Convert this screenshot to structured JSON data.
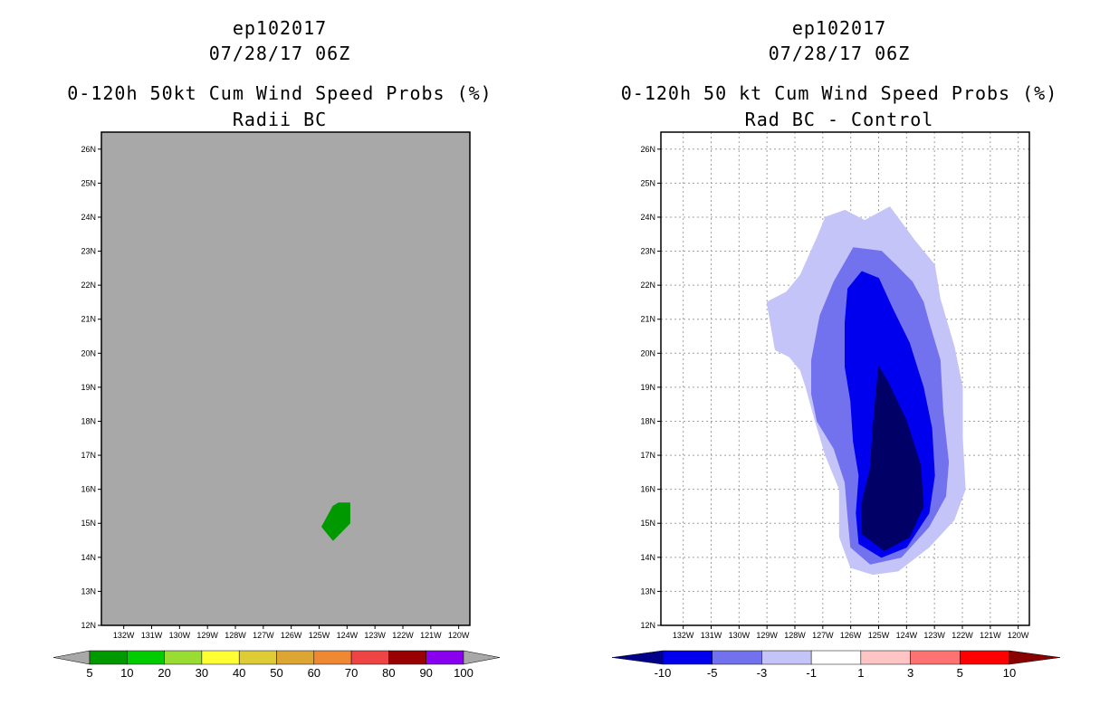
{
  "left": {
    "title_line1": "ep102017",
    "title_line2": "07/28/17 06Z",
    "title_line3": "0-120h 50kt Cum Wind Speed Probs (%)",
    "title_line4": "Radii BC",
    "background_color": "#a8a8a8",
    "colorbar": {
      "labels": [
        "5",
        "10",
        "20",
        "30",
        "40",
        "50",
        "60",
        "70",
        "80",
        "90",
        "100"
      ],
      "colors": [
        "#009900",
        "#00cc00",
        "#99dd33",
        "#ffff33",
        "#ddcc33",
        "#dda633",
        "#ee8833",
        "#ee4444",
        "#990000",
        "#8800ee"
      ],
      "end_color": "#a8a8a8"
    }
  },
  "right": {
    "title_line1": "ep102017",
    "title_line2": "07/28/17 06Z",
    "title_line3": "0-120h 50 kt Cum Wind Speed Probs (%)",
    "title_line4": "Rad BC - Control",
    "background_color": "#ffffff",
    "colorbar": {
      "labels": [
        "-10",
        "-5",
        "-3",
        "-1",
        "1",
        "3",
        "5",
        "10"
      ],
      "colors": [
        "#0000ee",
        "#7272ee",
        "#c4c4f8",
        "#ffffff",
        "#ffc4c4",
        "#ff7272",
        "#ff0000"
      ],
      "end_left": "#000088",
      "end_right": "#880000"
    }
  },
  "chart_data": [
    {
      "type": "contour-map",
      "title": "0-120h 50kt Cum Wind Speed Probs (%) - Radii BC",
      "xlim": [
        -132.8,
        -119.6
      ],
      "ylim": [
        12,
        26.5
      ],
      "xticks": [
        -132,
        -131,
        -130,
        -129,
        -128,
        -127,
        -126,
        -125,
        -124,
        -123,
        -122,
        -121,
        -120
      ],
      "xtick_labels": [
        "132W",
        "131W",
        "130W",
        "129W",
        "128W",
        "127W",
        "126W",
        "125W",
        "124W",
        "123W",
        "122W",
        "121W",
        "120W"
      ],
      "yticks": [
        12,
        13,
        14,
        15,
        16,
        17,
        18,
        19,
        20,
        21,
        22,
        23,
        24,
        25,
        26
      ],
      "ytick_labels": [
        "12N",
        "13N",
        "14N",
        "15N",
        "16N",
        "17N",
        "18N",
        "19N",
        "20N",
        "21N",
        "22N",
        "23N",
        "24N",
        "25N",
        "26N"
      ],
      "grid": false,
      "contours": [
        {
          "level": "5-10",
          "color": "#009900",
          "polygon": [
            [
              -124.3,
              15.6
            ],
            [
              -123.9,
              15.6
            ],
            [
              -123.9,
              15.0
            ],
            [
              -124.5,
              14.5
            ],
            [
              -124.9,
              14.9
            ],
            [
              -124.5,
              15.5
            ]
          ]
        }
      ]
    },
    {
      "type": "contour-map",
      "title": "0-120h 50 kt Cum Wind Speed Probs (%) - Rad BC - Control",
      "xlim": [
        -132.8,
        -119.6
      ],
      "ylim": [
        12,
        26.5
      ],
      "xticks": [
        -132,
        -131,
        -130,
        -129,
        -128,
        -127,
        -126,
        -125,
        -124,
        -123,
        -122,
        -121,
        -120
      ],
      "xtick_labels": [
        "132W",
        "131W",
        "130W",
        "129W",
        "128W",
        "127W",
        "126W",
        "125W",
        "124W",
        "123W",
        "122W",
        "121W",
        "120W"
      ],
      "yticks": [
        12,
        13,
        14,
        15,
        16,
        17,
        18,
        19,
        20,
        21,
        22,
        23,
        24,
        25,
        26
      ],
      "ytick_labels": [
        "12N",
        "13N",
        "14N",
        "15N",
        "16N",
        "17N",
        "18N",
        "19N",
        "20N",
        "21N",
        "22N",
        "23N",
        "24N",
        "25N",
        "26N"
      ],
      "grid": true,
      "contours": [
        {
          "level": "-3 to -1",
          "color": "#c4c4f8",
          "polygon": [
            [
              -126.9,
              24.0
            ],
            [
              -126.2,
              24.2
            ],
            [
              -125.5,
              23.9
            ],
            [
              -124.6,
              24.3
            ],
            [
              -123.7,
              23.3
            ],
            [
              -123.0,
              22.6
            ],
            [
              -122.8,
              21.6
            ],
            [
              -122.3,
              20.2
            ],
            [
              -122.0,
              19.0
            ],
            [
              -122.0,
              17.5
            ],
            [
              -121.9,
              16.0
            ],
            [
              -122.3,
              15.1
            ],
            [
              -123.2,
              14.3
            ],
            [
              -124.3,
              13.6
            ],
            [
              -125.2,
              13.5
            ],
            [
              -126.0,
              13.7
            ],
            [
              -126.4,
              14.6
            ],
            [
              -126.4,
              16.0
            ],
            [
              -126.9,
              17.0
            ],
            [
              -127.3,
              18.1
            ],
            [
              -127.6,
              19.0
            ],
            [
              -127.8,
              19.5
            ],
            [
              -128.2,
              19.9
            ],
            [
              -128.7,
              20.1
            ],
            [
              -129.0,
              21.5
            ],
            [
              -128.3,
              21.8
            ],
            [
              -127.8,
              22.3
            ],
            [
              -127.2,
              23.4
            ]
          ]
        },
        {
          "level": "-5 to -3",
          "color": "#7272ee",
          "polygon": [
            [
              -125.9,
              23.1
            ],
            [
              -124.9,
              23.0
            ],
            [
              -124.4,
              22.6
            ],
            [
              -123.8,
              22.1
            ],
            [
              -123.4,
              21.5
            ],
            [
              -123.2,
              20.9
            ],
            [
              -122.8,
              19.8
            ],
            [
              -122.7,
              18.3
            ],
            [
              -122.5,
              16.8
            ],
            [
              -122.6,
              15.8
            ],
            [
              -123.2,
              14.9
            ],
            [
              -124.2,
              14.0
            ],
            [
              -125.3,
              13.8
            ],
            [
              -126.0,
              14.3
            ],
            [
              -126.1,
              15.2
            ],
            [
              -126.2,
              16.2
            ],
            [
              -126.6,
              17.2
            ],
            [
              -127.2,
              18.0
            ],
            [
              -127.4,
              18.8
            ],
            [
              -127.4,
              19.8
            ],
            [
              -127.1,
              21.1
            ],
            [
              -126.6,
              22.1
            ]
          ]
        },
        {
          "level": "-10 to -5",
          "color": "#0000ee",
          "polygon": [
            [
              -125.6,
              22.4
            ],
            [
              -125.0,
              22.2
            ],
            [
              -124.5,
              21.3
            ],
            [
              -123.9,
              20.3
            ],
            [
              -123.4,
              19.0
            ],
            [
              -123.1,
              17.8
            ],
            [
              -123.0,
              16.4
            ],
            [
              -123.2,
              15.3
            ],
            [
              -124.0,
              14.3
            ],
            [
              -124.9,
              14.0
            ],
            [
              -125.7,
              14.4
            ],
            [
              -125.8,
              15.3
            ],
            [
              -125.7,
              16.4
            ],
            [
              -125.9,
              17.4
            ],
            [
              -126.0,
              18.6
            ],
            [
              -126.2,
              19.6
            ],
            [
              -126.2,
              20.9
            ],
            [
              -126.1,
              21.9
            ]
          ]
        },
        {
          "level": "< -10",
          "color": "#000066",
          "polygon": [
            [
              -125.0,
              19.6
            ],
            [
              -124.7,
              19.2
            ],
            [
              -124.0,
              18.0
            ],
            [
              -123.5,
              16.7
            ],
            [
              -123.4,
              15.5
            ],
            [
              -123.9,
              14.6
            ],
            [
              -124.8,
              14.2
            ],
            [
              -125.6,
              14.7
            ],
            [
              -125.6,
              15.6
            ],
            [
              -125.3,
              16.6
            ],
            [
              -125.2,
              17.8
            ]
          ]
        }
      ]
    }
  ]
}
